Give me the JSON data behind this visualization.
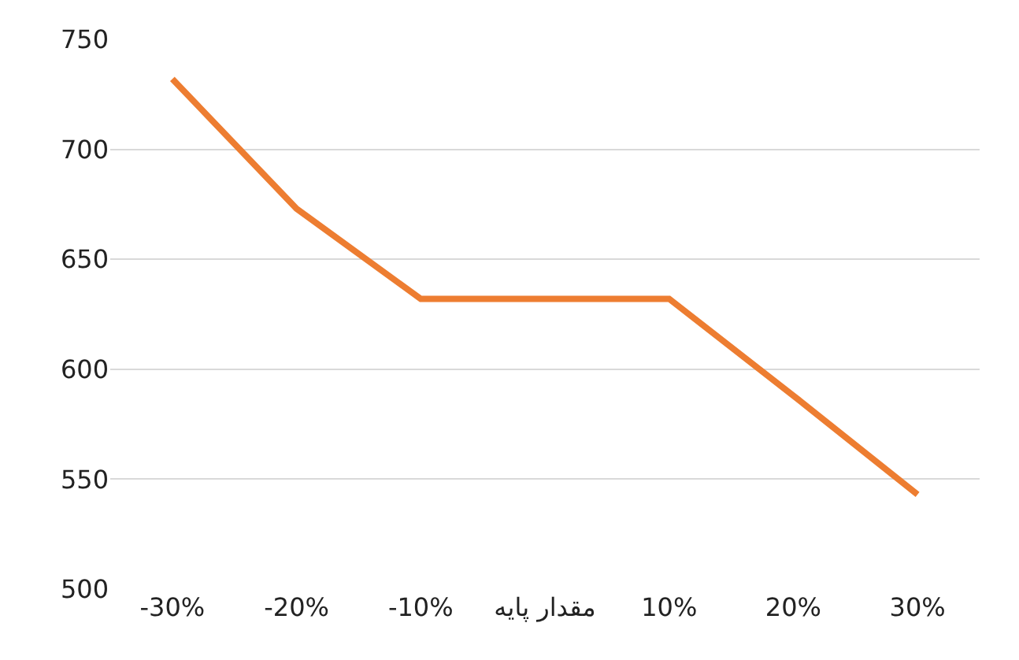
{
  "chart_data": {
    "type": "line",
    "categories": [
      "-30%",
      "-20%",
      "-10%",
      "مقدار پایه",
      "10%",
      "20%",
      "30%"
    ],
    "series": [
      {
        "color": "#ed7d31",
        "values": [
          732,
          673,
          632,
          632,
          632,
          588,
          543
        ]
      }
    ],
    "ylim": [
      500,
      750
    ],
    "yticks": [
      500,
      550,
      600,
      650,
      700,
      750
    ],
    "grid": "y",
    "legend": false,
    "marker": "none",
    "line_style": "solid"
  }
}
